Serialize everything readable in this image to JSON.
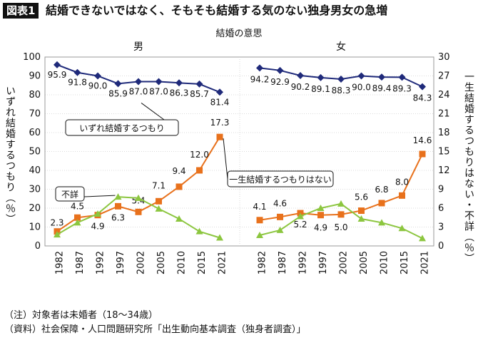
{
  "figure": {
    "tag": "図表1",
    "title": "結婚できないではなく、そもそも結婚する気のない独身男女の急増",
    "subtitle": "結婚の意思",
    "notes": [
      "（注）対象者は未婚者（18～34歳）",
      "（資料）社会保障・人口問題研究所「出生動向基本調査（独身者調査）」"
    ]
  },
  "chart_data": {
    "type": "line",
    "ylabel_left": "いずれ結婚するつもり（％）",
    "ylabel_right": "一生結婚するつもりはない・不詳（％）",
    "ylim_left": [
      0,
      100
    ],
    "yticks_left": [
      "0",
      "10",
      "20",
      "30",
      "40",
      "50",
      "60",
      "70",
      "80",
      "90",
      "100"
    ],
    "ylim_right": [
      0,
      30
    ],
    "yticks_right": [
      "0",
      "3",
      "6",
      "9",
      "12",
      "15",
      "18",
      "21",
      "24",
      "27",
      "30"
    ],
    "x": [
      "1982",
      "1987",
      "1992",
      "1997",
      "2002",
      "2005",
      "2010",
      "2015",
      "2021"
    ],
    "grid": true,
    "colors": {
      "intend": "#1f2a7a",
      "never": "#e8711c",
      "unknown": "#8cc63f"
    },
    "panels": [
      {
        "name": "男",
        "series": [
          {
            "name": "いずれ結婚するつもり",
            "axis": "left",
            "marker": "diamond",
            "values": [
              95.9,
              91.8,
              90.0,
              85.9,
              87.0,
              87.0,
              86.3,
              85.7,
              81.4
            ],
            "labels": [
              "95.9",
              "91.8",
              "90.0",
              "85.9",
              "87.0",
              "87.0",
              "86.3",
              "85.7",
              "81.4"
            ]
          },
          {
            "name": "一生結婚するつもりはない",
            "axis": "right",
            "marker": "square",
            "values": [
              2.3,
              4.5,
              4.9,
              6.3,
              5.4,
              7.1,
              9.4,
              12.0,
              17.3
            ],
            "labels": [
              "2.3",
              "4.5",
              "4.9",
              "6.3",
              "5.4",
              "7.1",
              "9.4",
              "12.0",
              "17.3"
            ]
          },
          {
            "name": "不詳",
            "axis": "right",
            "marker": "triangle",
            "values": [
              1.8,
              3.7,
              5.1,
              7.8,
              7.6,
              5.9,
              4.3,
              2.3,
              1.3
            ]
          }
        ]
      },
      {
        "name": "女",
        "series": [
          {
            "name": "いずれ結婚するつもり",
            "axis": "left",
            "marker": "diamond",
            "values": [
              94.2,
              92.9,
              90.2,
              89.1,
              88.3,
              90.0,
              89.4,
              89.3,
              84.3
            ],
            "labels": [
              "94.2",
              "92.9",
              "90.2",
              "89.1",
              "88.3",
              "90.0",
              "89.4",
              "89.3",
              "84.3"
            ]
          },
          {
            "name": "一生結婚するつもりはない",
            "axis": "right",
            "marker": "square",
            "values": [
              4.1,
              4.6,
              5.2,
              4.9,
              5.0,
              5.6,
              6.8,
              8.0,
              14.6
            ],
            "labels": [
              "4.1",
              "4.6",
              "5.2",
              "4.9",
              "5.0",
              "5.6",
              "6.8",
              "8.0",
              "14.6"
            ]
          },
          {
            "name": "不詳",
            "axis": "right",
            "marker": "triangle",
            "values": [
              1.7,
              2.5,
              4.7,
              6.0,
              6.7,
              4.3,
              3.7,
              2.8,
              1.2
            ]
          }
        ]
      }
    ],
    "annotations": [
      {
        "text": "いずれ結婚するつもり",
        "series": "いずれ結婚するつもり",
        "panel": "男"
      },
      {
        "text": "一生結婚するつもりはない",
        "series": "一生結婚するつもりはない",
        "panel": "男"
      },
      {
        "text": "不詳",
        "series": "不詳",
        "panel": "男"
      }
    ]
  }
}
